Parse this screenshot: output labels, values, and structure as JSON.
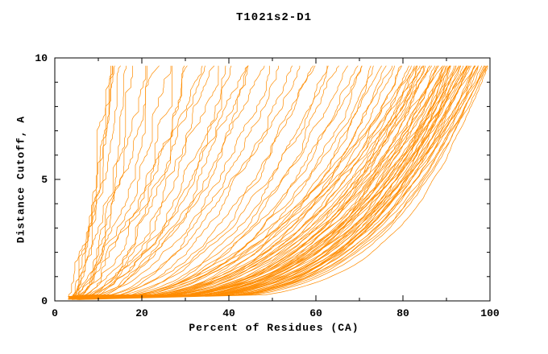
{
  "chart_data": {
    "type": "line",
    "title": "T1021s2-D1",
    "xlabel": "Percent of Residues (CA)",
    "ylabel": "Distance Cutoff, A",
    "xlim": [
      0,
      100
    ],
    "ylim": [
      0,
      10
    ],
    "x_major_ticks": [
      0,
      20,
      40,
      60,
      80,
      100
    ],
    "x_minor_step": 10,
    "y_major_ticks": [
      0,
      5,
      10
    ],
    "y_minor_step": 1,
    "grid": false,
    "legend": "none",
    "line_color": "#ff8c00",
    "frame_color": "#000000",
    "curve_encoding": "each curve is [percent_at_0A, percent_at_10A, shape]; x(y)=x0+(xmax-x0)*(y/10)^(1/shape)",
    "curves": [
      [
        4,
        12,
        1.1
      ],
      [
        3,
        13,
        1.3
      ],
      [
        4,
        14,
        1.2
      ],
      [
        3,
        15,
        1.5
      ],
      [
        4,
        16,
        1.3
      ],
      [
        3,
        17,
        1.6
      ],
      [
        4,
        18,
        1.4
      ],
      [
        3,
        20,
        1.7
      ],
      [
        4,
        22,
        1.5
      ],
      [
        3,
        24,
        1.8
      ],
      [
        4,
        26,
        1.6
      ],
      [
        3,
        28,
        1.9
      ],
      [
        4,
        30,
        1.7
      ],
      [
        3,
        32,
        2.0
      ],
      [
        4,
        34,
        1.8
      ],
      [
        3,
        36,
        2.1
      ],
      [
        4,
        38,
        1.9
      ],
      [
        3,
        40,
        2.2
      ],
      [
        4,
        42,
        2.0
      ],
      [
        3,
        44,
        2.1
      ],
      [
        4,
        46,
        2.2
      ],
      [
        3,
        48,
        2.0
      ],
      [
        4,
        50,
        2.3
      ],
      [
        3,
        52,
        2.1
      ],
      [
        4,
        45,
        1.6
      ],
      [
        3,
        35,
        1.4
      ],
      [
        4,
        55,
        2.4
      ],
      [
        3,
        57,
        2.2
      ],
      [
        4,
        59,
        2.6
      ],
      [
        3,
        61,
        2.3
      ],
      [
        4,
        63,
        2.7
      ],
      [
        3,
        65,
        2.4
      ],
      [
        4,
        66,
        2.8
      ],
      [
        3,
        68,
        2.5
      ],
      [
        4,
        70,
        2.9
      ],
      [
        3,
        71,
        2.6
      ],
      [
        4,
        72,
        3.0
      ],
      [
        3,
        74,
        2.7
      ],
      [
        4,
        75,
        3.1
      ],
      [
        3,
        76,
        2.8
      ],
      [
        4,
        77,
        3.2
      ],
      [
        3,
        78,
        2.9
      ],
      [
        4,
        79,
        3.0
      ],
      [
        3,
        80,
        3.3
      ],
      [
        4,
        81,
        2.9
      ],
      [
        3,
        82,
        3.1
      ],
      [
        4,
        83,
        3.0
      ],
      [
        5,
        83,
        3.4
      ],
      [
        3,
        84,
        3.1
      ],
      [
        4,
        84,
        3.6
      ],
      [
        5,
        85,
        3.2
      ],
      [
        3,
        85,
        3.8
      ],
      [
        4,
        86,
        3.3
      ],
      [
        5,
        86,
        4.0
      ],
      [
        3,
        87,
        3.4
      ],
      [
        4,
        87,
        3.0
      ],
      [
        5,
        88,
        3.5
      ],
      [
        3,
        88,
        4.1
      ],
      [
        4,
        89,
        3.6
      ],
      [
        5,
        89,
        3.1
      ],
      [
        3,
        90,
        3.7
      ],
      [
        4,
        90,
        4.2
      ],
      [
        5,
        90,
        3.2
      ],
      [
        3,
        91,
        3.8
      ],
      [
        4,
        91,
        3.3
      ],
      [
        5,
        91,
        4.3
      ],
      [
        3,
        92,
        3.9
      ],
      [
        4,
        92,
        3.4
      ],
      [
        5,
        92,
        4.4
      ],
      [
        3,
        93,
        4.0
      ],
      [
        4,
        93,
        3.5
      ],
      [
        5,
        93,
        4.5
      ],
      [
        3,
        94,
        4.1
      ],
      [
        4,
        94,
        3.6
      ],
      [
        5,
        94,
        3.0
      ],
      [
        3,
        95,
        4.2
      ],
      [
        4,
        95,
        3.7
      ],
      [
        5,
        95,
        3.1
      ],
      [
        3,
        96,
        4.3
      ],
      [
        4,
        96,
        3.8
      ],
      [
        5,
        96,
        3.2
      ],
      [
        3,
        97,
        4.4
      ],
      [
        4,
        97,
        3.9
      ],
      [
        5,
        97,
        3.3
      ],
      [
        3,
        98,
        4.5
      ],
      [
        4,
        98,
        4.0
      ],
      [
        5,
        98,
        3.4
      ],
      [
        3,
        99,
        4.6
      ],
      [
        4,
        99,
        4.1
      ],
      [
        5,
        99,
        3.5
      ],
      [
        3,
        100,
        4.2
      ],
      [
        4,
        100,
        3.6
      ],
      [
        5,
        100,
        4.7
      ],
      [
        3,
        100,
        3.0
      ],
      [
        4,
        98,
        2.8
      ],
      [
        5,
        96,
        2.7
      ],
      [
        3,
        94,
        2.6
      ],
      [
        4,
        92,
        2.5
      ],
      [
        5,
        90,
        2.4
      ],
      [
        3,
        88,
        2.3
      ],
      [
        4,
        86,
        2.2
      ],
      [
        5,
        84,
        2.1
      ]
    ]
  }
}
